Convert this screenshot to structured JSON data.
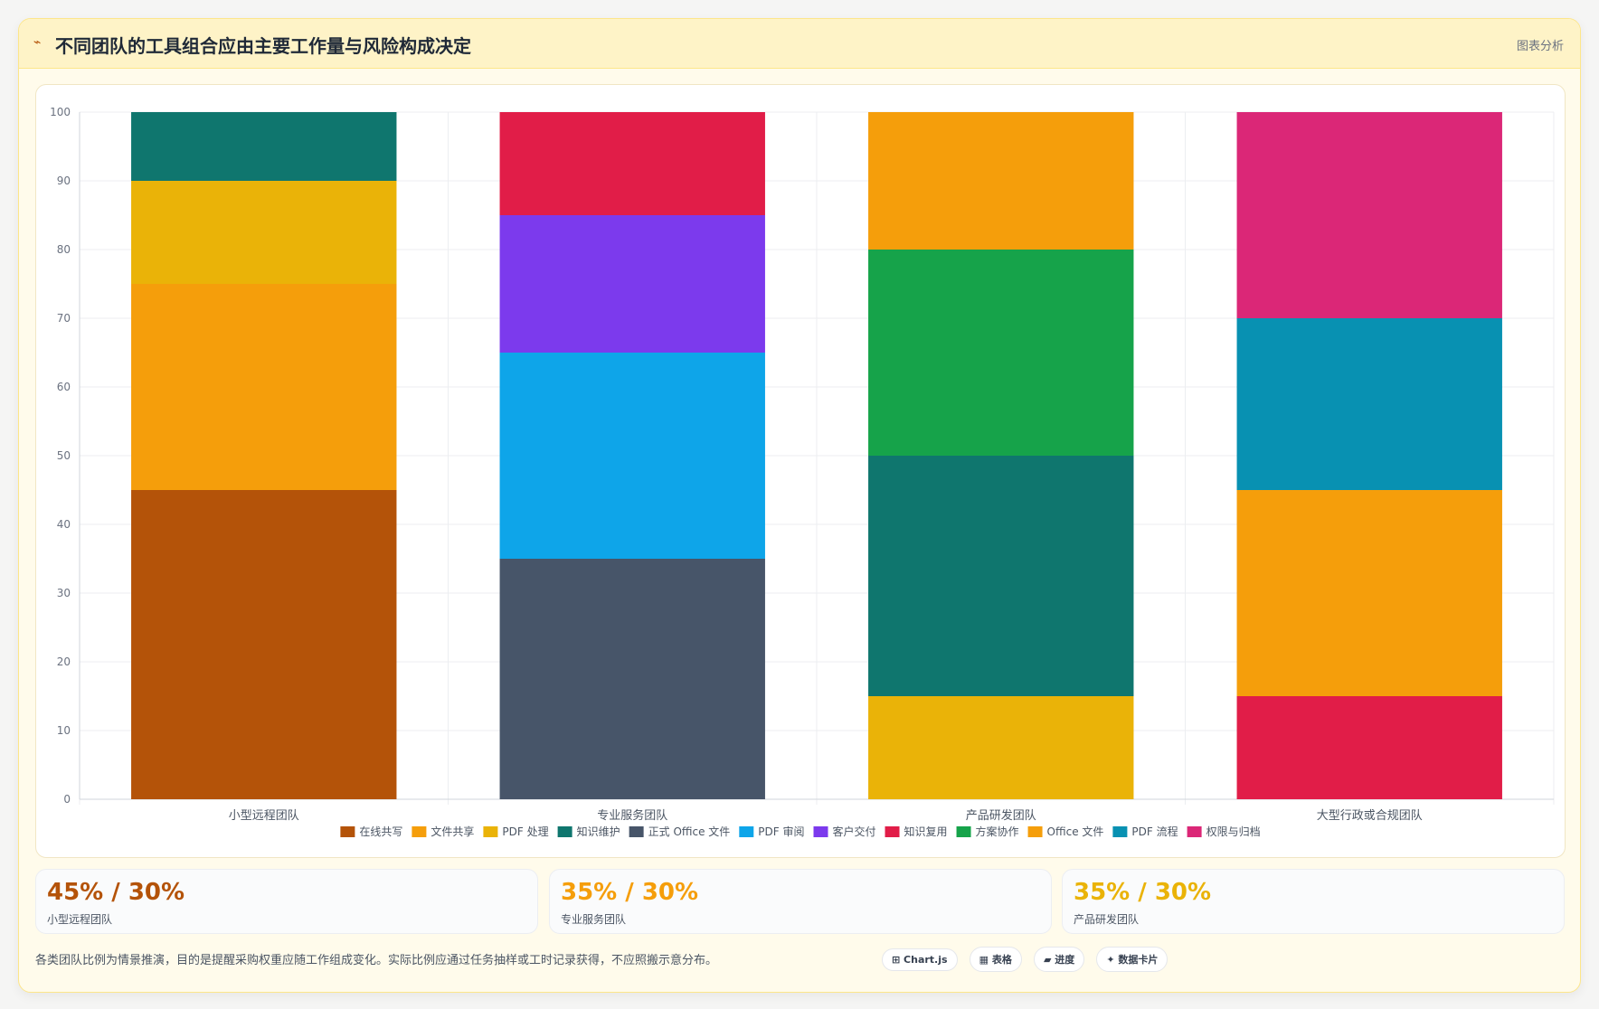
{
  "header": {
    "icon": "⌁",
    "title": "不同团队的工具组合应由主要工作量与风险构成决定",
    "action_label": "图表分析"
  },
  "chart_data": {
    "type": "bar",
    "stacked": true,
    "categories": [
      "小型远程团队",
      "专业服务团队",
      "产品研发团队",
      "大型行政或合规团队"
    ],
    "ylim": [
      0,
      100
    ],
    "yticks": [
      0,
      10,
      20,
      30,
      40,
      50,
      60,
      70,
      80,
      90,
      100
    ],
    "grid": true,
    "legend_position": "bottom",
    "series": [
      {
        "name": "在线共写",
        "color": "#b45309",
        "values": [
          45,
          0,
          0,
          0
        ]
      },
      {
        "name": "文件共享",
        "color": "#f59e0b",
        "values": [
          30,
          0,
          0,
          0
        ]
      },
      {
        "name": "PDF 处理",
        "color": "#eab308",
        "values": [
          15,
          0,
          15,
          0
        ]
      },
      {
        "name": "知识维护",
        "color": "#0f766e",
        "values": [
          10,
          0,
          35,
          0
        ]
      },
      {
        "name": "正式 Office 文件",
        "color": "#475569",
        "values": [
          0,
          35,
          0,
          0
        ]
      },
      {
        "name": "PDF 审阅",
        "color": "#0ea5e9",
        "values": [
          0,
          30,
          0,
          0
        ]
      },
      {
        "name": "客户交付",
        "color": "#7c3aed",
        "values": [
          0,
          20,
          0,
          0
        ]
      },
      {
        "name": "知识复用",
        "color": "#e11d48",
        "values": [
          0,
          15,
          0,
          15
        ]
      },
      {
        "name": "方案协作",
        "color": "#16a34a",
        "values": [
          0,
          0,
          30,
          0
        ]
      },
      {
        "name": "Office 文件",
        "color": "#f59e0b",
        "values": [
          0,
          0,
          20,
          30
        ]
      },
      {
        "name": "PDF 流程",
        "color": "#0891b2",
        "values": [
          0,
          0,
          0,
          25
        ]
      },
      {
        "name": "权限与归档",
        "color": "#db2777",
        "values": [
          0,
          0,
          0,
          30
        ]
      }
    ]
  },
  "stats": [
    {
      "value": "45% / 30%",
      "label": "小型远程团队",
      "color": "#b45309"
    },
    {
      "value": "35% / 30%",
      "label": "专业服务团队",
      "color": "#f59e0b"
    },
    {
      "value": "35% / 30%",
      "label": "产品研发团队",
      "color": "#eab308"
    }
  ],
  "footer": {
    "note": "各类团队比例为情景推演，目的是提醒采购权重应随工作组成变化。实际比例应通过任务抽样或工时记录获得，不应照搬示意分布。",
    "tags": [
      "⊞ Chart.js",
      "▦ 表格",
      "▰ 进度",
      "✦ 数据卡片"
    ]
  }
}
